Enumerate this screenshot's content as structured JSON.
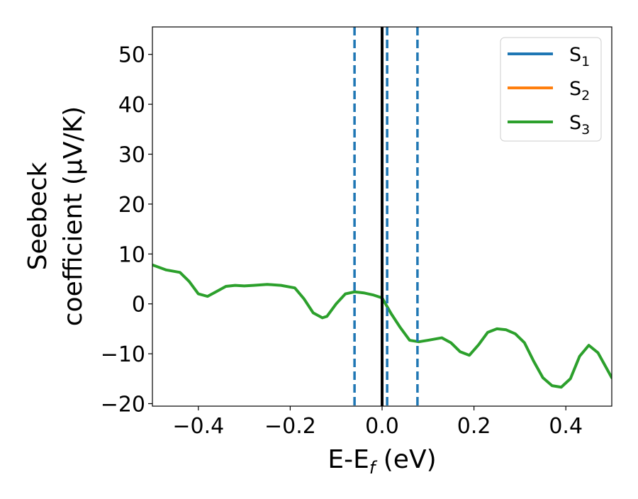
{
  "chart_data": {
    "type": "line",
    "xlabel": "E-E",
    "xlabel_sub": "f",
    "xlabel_unit": " (eV)",
    "ylabel_line1": "Seebeck",
    "ylabel_line2": "coefficient  (μV/K)",
    "xlim": [
      -0.5,
      0.5
    ],
    "ylim": [
      -20.5,
      55.5
    ],
    "xticks": [
      -0.4,
      -0.2,
      0.0,
      0.2,
      0.4
    ],
    "xtick_labels": [
      "−0.4",
      "−0.2",
      "0.0",
      "0.2",
      "0.4"
    ],
    "yticks": [
      -20,
      -10,
      0,
      10,
      20,
      30,
      40,
      50
    ],
    "ytick_labels": [
      "−20",
      "−10",
      "0",
      "10",
      "20",
      "30",
      "40",
      "50"
    ],
    "grid": false,
    "legend_position": "top-right",
    "legend": [
      {
        "base": "S",
        "sub": "1",
        "color": "#1f77b4"
      },
      {
        "base": "S",
        "sub": "2",
        "color": "#ff7f0e"
      },
      {
        "base": "S",
        "sub": "3",
        "color": "#2ca02c"
      }
    ],
    "series": [
      {
        "name": "S3",
        "color": "#2ca02c",
        "x": [
          -0.5,
          -0.47,
          -0.44,
          -0.42,
          -0.4,
          -0.38,
          -0.36,
          -0.34,
          -0.32,
          -0.3,
          -0.28,
          -0.25,
          -0.22,
          -0.19,
          -0.17,
          -0.15,
          -0.13,
          -0.12,
          -0.1,
          -0.08,
          -0.06,
          -0.04,
          -0.02,
          0.0,
          0.02,
          0.04,
          0.06,
          0.08,
          0.1,
          0.13,
          0.15,
          0.17,
          0.19,
          0.21,
          0.23,
          0.25,
          0.27,
          0.29,
          0.31,
          0.33,
          0.35,
          0.37,
          0.39,
          0.41,
          0.43,
          0.45,
          0.47,
          0.5
        ],
        "y": [
          7.8,
          6.8,
          6.3,
          4.5,
          2.0,
          1.5,
          2.5,
          3.5,
          3.7,
          3.6,
          3.7,
          3.9,
          3.7,
          3.2,
          1.0,
          -1.8,
          -2.8,
          -2.5,
          0.0,
          2.0,
          2.4,
          2.2,
          1.8,
          1.2,
          -2.0,
          -4.8,
          -7.3,
          -7.6,
          -7.3,
          -6.8,
          -7.8,
          -9.6,
          -10.3,
          -8.2,
          -5.7,
          -5.0,
          -5.2,
          -6.0,
          -7.8,
          -11.5,
          -14.8,
          -16.4,
          -16.7,
          -15.0,
          -10.5,
          -8.3,
          -9.8,
          -14.8
        ]
      }
    ],
    "vlines": [
      {
        "x": -0.06,
        "style": "dashed",
        "color": "#1f77b4"
      },
      {
        "x": 0.0,
        "style": "solid",
        "color": "#000000"
      },
      {
        "x": 0.011,
        "style": "dashed",
        "color": "#1f77b4"
      },
      {
        "x": 0.077,
        "style": "dashed",
        "color": "#1f77b4"
      }
    ]
  }
}
